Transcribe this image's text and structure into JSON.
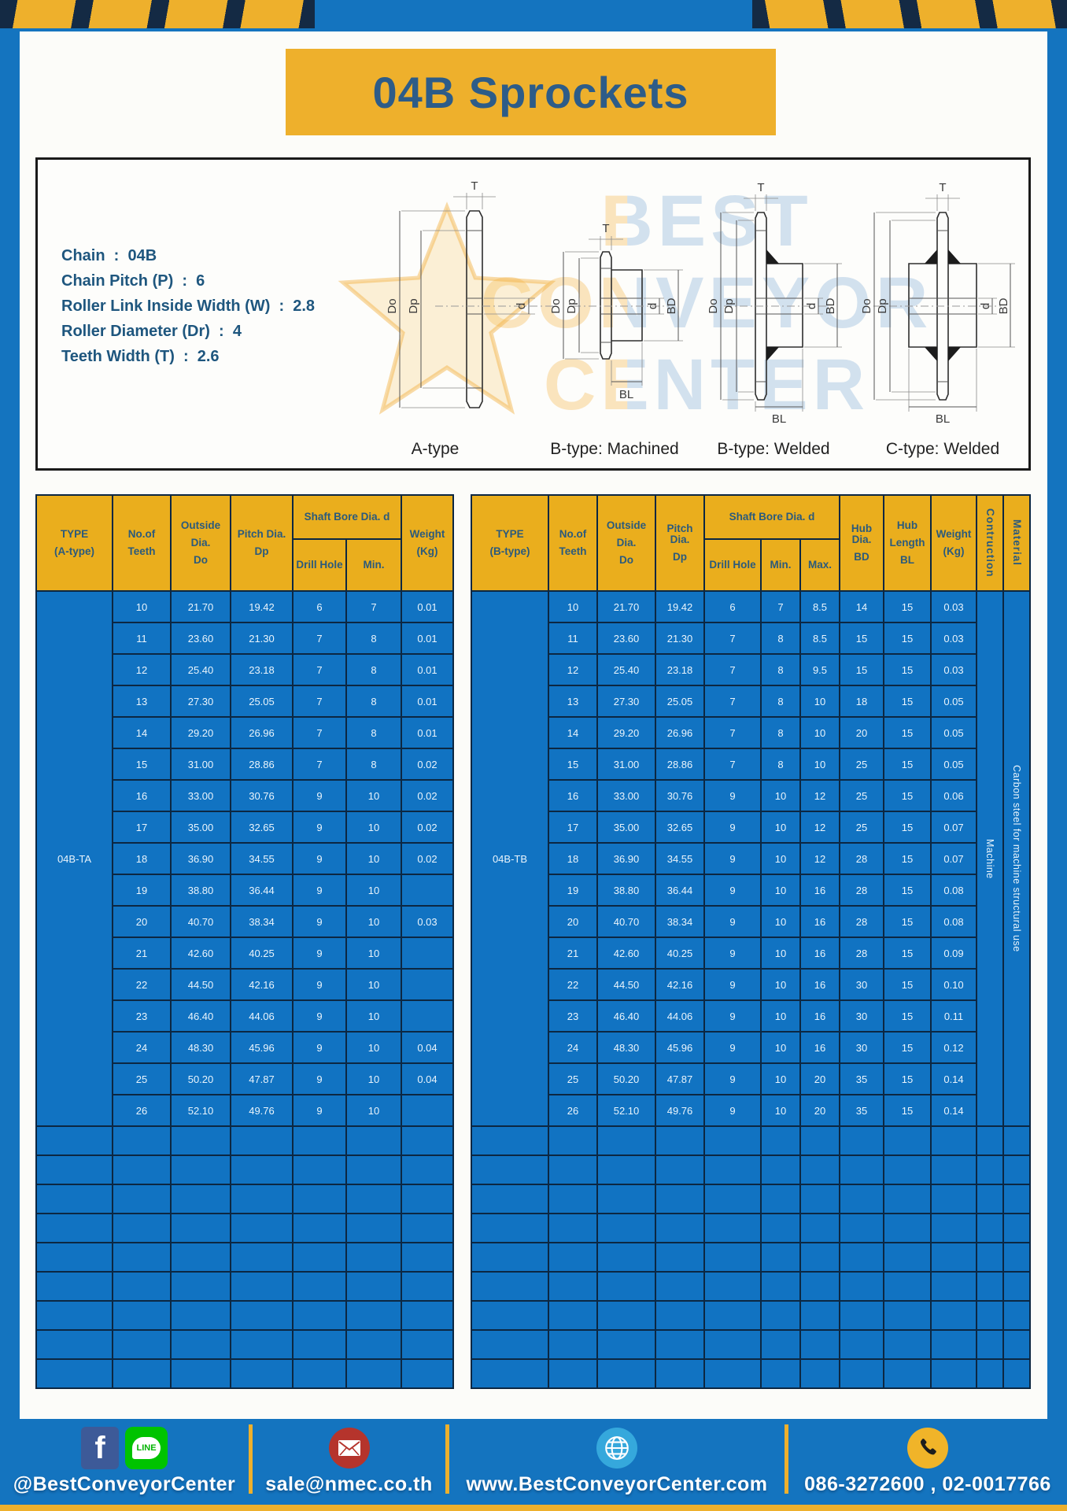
{
  "page": {
    "title": "04B Sprockets"
  },
  "colors": {
    "frame_blue": "#1474bf",
    "accent_yellow": "#eeb02c",
    "hazard_navy": "#142a44",
    "table_header_yellow": "#eaae1d",
    "table_body_blue": "#1173c2",
    "table_grid_navy": "#0c2742",
    "title_text_blue": "#2d5c88"
  },
  "specs": {
    "lines": [
      {
        "text": "Chain  :  04B"
      },
      {
        "text": "Chain Pitch (P)  :  6"
      },
      {
        "text": "Roller Link Inside Width (W)  :  2.8"
      },
      {
        "text": "Roller Diameter (Dr)  :  4"
      },
      {
        "text": "Teeth Width (T)  :  2.6"
      }
    ]
  },
  "drawing": {
    "captions": [
      "A-type",
      "B-type: Machined",
      "B-type: Welded",
      "C-type: Welded"
    ],
    "dims": {
      "t": "T",
      "do": "Do",
      "dp": "Dp",
      "d": "d",
      "bd": "BD",
      "bl": "BL"
    },
    "watermark": [
      "BEST",
      "CONVEYOR",
      "CENTER"
    ]
  },
  "tableA": {
    "header": {
      "type1": "TYPE",
      "type2": "(A-type)",
      "teeth1": "No.of",
      "teeth2": "Teeth",
      "outside1": "Outside",
      "outside2": "Dia.",
      "outside3": "Do",
      "pitch1": "Pitch Dia.",
      "pitch2": "Dp",
      "shaft": "Shaft Bore Dia. d",
      "drill": "Drill Hole",
      "min": "Min.",
      "weight1": "Weight",
      "weight2": "(Kg)"
    },
    "type_value": "04B-TA",
    "empty_rows": 9,
    "rows": [
      {
        "teeth": "10",
        "do": "21.70",
        "dp": "19.42",
        "drill": "6",
        "min": "7",
        "weight": "0.01"
      },
      {
        "teeth": "11",
        "do": "23.60",
        "dp": "21.30",
        "drill": "7",
        "min": "8",
        "weight": "0.01"
      },
      {
        "teeth": "12",
        "do": "25.40",
        "dp": "23.18",
        "drill": "7",
        "min": "8",
        "weight": "0.01"
      },
      {
        "teeth": "13",
        "do": "27.30",
        "dp": "25.05",
        "drill": "7",
        "min": "8",
        "weight": "0.01"
      },
      {
        "teeth": "14",
        "do": "29.20",
        "dp": "26.96",
        "drill": "7",
        "min": "8",
        "weight": "0.01"
      },
      {
        "teeth": "15",
        "do": "31.00",
        "dp": "28.86",
        "drill": "7",
        "min": "8",
        "weight": "0.02"
      },
      {
        "teeth": "16",
        "do": "33.00",
        "dp": "30.76",
        "drill": "9",
        "min": "10",
        "weight": "0.02"
      },
      {
        "teeth": "17",
        "do": "35.00",
        "dp": "32.65",
        "drill": "9",
        "min": "10",
        "weight": "0.02"
      },
      {
        "teeth": "18",
        "do": "36.90",
        "dp": "34.55",
        "drill": "9",
        "min": "10",
        "weight": "0.02"
      },
      {
        "teeth": "19",
        "do": "38.80",
        "dp": "36.44",
        "drill": "9",
        "min": "10",
        "weight": ""
      },
      {
        "teeth": "20",
        "do": "40.70",
        "dp": "38.34",
        "drill": "9",
        "min": "10",
        "weight": "0.03"
      },
      {
        "teeth": "21",
        "do": "42.60",
        "dp": "40.25",
        "drill": "9",
        "min": "10",
        "weight": ""
      },
      {
        "teeth": "22",
        "do": "44.50",
        "dp": "42.16",
        "drill": "9",
        "min": "10",
        "weight": ""
      },
      {
        "teeth": "23",
        "do": "46.40",
        "dp": "44.06",
        "drill": "9",
        "min": "10",
        "weight": ""
      },
      {
        "teeth": "24",
        "do": "48.30",
        "dp": "45.96",
        "drill": "9",
        "min": "10",
        "weight": "0.04"
      },
      {
        "teeth": "25",
        "do": "50.20",
        "dp": "47.87",
        "drill": "9",
        "min": "10",
        "weight": "0.04"
      },
      {
        "teeth": "26",
        "do": "52.10",
        "dp": "49.76",
        "drill": "9",
        "min": "10",
        "weight": ""
      }
    ]
  },
  "tableB": {
    "header": {
      "type1": "TYPE",
      "type2": "(B-type)",
      "teeth1": "No.of",
      "teeth2": "Teeth",
      "outside1": "Outside",
      "outside2": "Dia.",
      "outside3": "Do",
      "pitch1": "Pitch Dia.",
      "pitch2": "Dp",
      "shaft": "Shaft Bore Dia. d",
      "drill": "Drill Hole",
      "min": "Min.",
      "max": "Max.",
      "hubdia1": "Hub Dia.",
      "hubdia2": "BD",
      "hublen1": "Hub",
      "hublen2": "Length",
      "hublen3": "BL",
      "weight1": "Weight",
      "weight2": "(Kg)",
      "construction": "Contruction",
      "material": "Material"
    },
    "type_value": "04B-TB",
    "construction_value": "Machine",
    "material_value": "Carbon steel for machine structural use",
    "empty_rows": 9,
    "rows": [
      {
        "teeth": "10",
        "do": "21.70",
        "dp": "19.42",
        "drill": "6",
        "min": "7",
        "max": "8.5",
        "bd": "14",
        "bl": "15",
        "weight": "0.03"
      },
      {
        "teeth": "11",
        "do": "23.60",
        "dp": "21.30",
        "drill": "7",
        "min": "8",
        "max": "8.5",
        "bd": "15",
        "bl": "15",
        "weight": "0.03"
      },
      {
        "teeth": "12",
        "do": "25.40",
        "dp": "23.18",
        "drill": "7",
        "min": "8",
        "max": "9.5",
        "bd": "15",
        "bl": "15",
        "weight": "0.03"
      },
      {
        "teeth": "13",
        "do": "27.30",
        "dp": "25.05",
        "drill": "7",
        "min": "8",
        "max": "10",
        "bd": "18",
        "bl": "15",
        "weight": "0.05"
      },
      {
        "teeth": "14",
        "do": "29.20",
        "dp": "26.96",
        "drill": "7",
        "min": "8",
        "max": "10",
        "bd": "20",
        "bl": "15",
        "weight": "0.05"
      },
      {
        "teeth": "15",
        "do": "31.00",
        "dp": "28.86",
        "drill": "7",
        "min": "8",
        "max": "10",
        "bd": "25",
        "bl": "15",
        "weight": "0.05"
      },
      {
        "teeth": "16",
        "do": "33.00",
        "dp": "30.76",
        "drill": "9",
        "min": "10",
        "max": "12",
        "bd": "25",
        "bl": "15",
        "weight": "0.06"
      },
      {
        "teeth": "17",
        "do": "35.00",
        "dp": "32.65",
        "drill": "9",
        "min": "10",
        "max": "12",
        "bd": "25",
        "bl": "15",
        "weight": "0.07"
      },
      {
        "teeth": "18",
        "do": "36.90",
        "dp": "34.55",
        "drill": "9",
        "min": "10",
        "max": "12",
        "bd": "28",
        "bl": "15",
        "weight": "0.07"
      },
      {
        "teeth": "19",
        "do": "38.80",
        "dp": "36.44",
        "drill": "9",
        "min": "10",
        "max": "16",
        "bd": "28",
        "bl": "15",
        "weight": "0.08"
      },
      {
        "teeth": "20",
        "do": "40.70",
        "dp": "38.34",
        "drill": "9",
        "min": "10",
        "max": "16",
        "bd": "28",
        "bl": "15",
        "weight": "0.08"
      },
      {
        "teeth": "21",
        "do": "42.60",
        "dp": "40.25",
        "drill": "9",
        "min": "10",
        "max": "16",
        "bd": "28",
        "bl": "15",
        "weight": "0.09"
      },
      {
        "teeth": "22",
        "do": "44.50",
        "dp": "42.16",
        "drill": "9",
        "min": "10",
        "max": "16",
        "bd": "30",
        "bl": "15",
        "weight": "0.10"
      },
      {
        "teeth": "23",
        "do": "46.40",
        "dp": "44.06",
        "drill": "9",
        "min": "10",
        "max": "16",
        "bd": "30",
        "bl": "15",
        "weight": "0.11"
      },
      {
        "teeth": "24",
        "do": "48.30",
        "dp": "45.96",
        "drill": "9",
        "min": "10",
        "max": "16",
        "bd": "30",
        "bl": "15",
        "weight": "0.12"
      },
      {
        "teeth": "25",
        "do": "50.20",
        "dp": "47.87",
        "drill": "9",
        "min": "10",
        "max": "20",
        "bd": "35",
        "bl": "15",
        "weight": "0.14"
      },
      {
        "teeth": "26",
        "do": "52.10",
        "dp": "49.76",
        "drill": "9",
        "min": "10",
        "max": "20",
        "bd": "35",
        "bl": "15",
        "weight": "0.14"
      }
    ]
  },
  "footer": {
    "social": "@BestConveyorCenter",
    "email": "sale@nmec.co.th",
    "website": "www.BestConveyorCenter.com",
    "phones": "086-3272600 , 02-0017766",
    "facebook_label": "f",
    "line_label": "LINE",
    "icons": [
      "facebook-icon",
      "line-icon",
      "email-icon",
      "globe-icon",
      "phone-icon"
    ]
  }
}
